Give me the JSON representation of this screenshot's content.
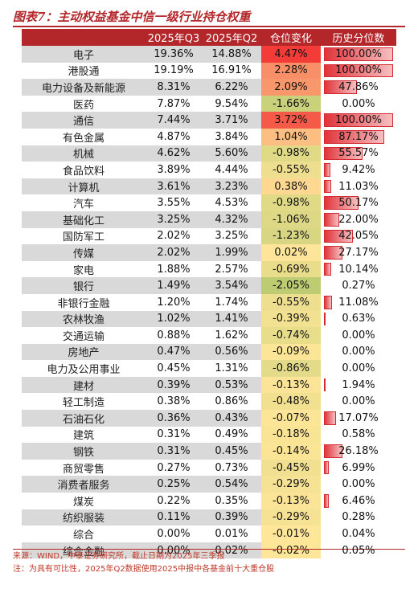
{
  "title": "图表7：主动权益基金中信一级行业持仓权重",
  "headers": [
    "",
    "2025年Q3",
    "2025年Q2",
    "仓位变化",
    "历史分位数"
  ],
  "source": "来源：WIND，中泰证券研究所，截止日期为2025年三季报",
  "note": "注：为具有可比性，2025年Q2数据使用2025中报中各基金前十大重仓股",
  "colors": {
    "accent": "#b3262a",
    "bar": "#e0343a"
  },
  "chart_data": {
    "type": "table",
    "columns": [
      "",
      "2025年Q3",
      "2025年Q2",
      "仓位变化",
      "历史分位数"
    ],
    "rows": [
      {
        "industry": "电子",
        "q3": "19.36%",
        "q2": "14.88%",
        "change": "4.47%",
        "change_value": 4.47,
        "pct": "100.00%",
        "pct_value": 100.0
      },
      {
        "industry": "港股通",
        "q3": "19.19%",
        "q2": "16.91%",
        "change": "2.28%",
        "change_value": 2.28,
        "pct": "100.00%",
        "pct_value": 100.0
      },
      {
        "industry": "电力设备及新能源",
        "q3": "8.31%",
        "q2": "6.22%",
        "change": "2.09%",
        "change_value": 2.09,
        "pct": "47.86%",
        "pct_value": 47.86
      },
      {
        "industry": "医药",
        "q3": "7.87%",
        "q2": "9.54%",
        "change": "-1.66%",
        "change_value": -1.66,
        "pct": "0.00%",
        "pct_value": 0.0
      },
      {
        "industry": "通信",
        "q3": "7.44%",
        "q2": "3.71%",
        "change": "3.72%",
        "change_value": 3.72,
        "pct": "100.00%",
        "pct_value": 100.0
      },
      {
        "industry": "有色金属",
        "q3": "4.87%",
        "q2": "3.84%",
        "change": "1.04%",
        "change_value": 1.04,
        "pct": "87.17%",
        "pct_value": 87.17
      },
      {
        "industry": "机械",
        "q3": "4.62%",
        "q2": "5.60%",
        "change": "-0.98%",
        "change_value": -0.98,
        "pct": "55.57%",
        "pct_value": 55.57
      },
      {
        "industry": "食品饮料",
        "q3": "3.89%",
        "q2": "4.44%",
        "change": "-0.55%",
        "change_value": -0.55,
        "pct": "9.42%",
        "pct_value": 9.42
      },
      {
        "industry": "计算机",
        "q3": "3.61%",
        "q2": "3.23%",
        "change": "0.38%",
        "change_value": 0.38,
        "pct": "11.03%",
        "pct_value": 11.03
      },
      {
        "industry": "汽车",
        "q3": "3.55%",
        "q2": "4.53%",
        "change": "-0.98%",
        "change_value": -0.98,
        "pct": "50.17%",
        "pct_value": 50.17
      },
      {
        "industry": "基础化工",
        "q3": "3.25%",
        "q2": "4.32%",
        "change": "-1.06%",
        "change_value": -1.06,
        "pct": "22.00%",
        "pct_value": 22.0
      },
      {
        "industry": "国防军工",
        "q3": "2.02%",
        "q2": "3.25%",
        "change": "-1.23%",
        "change_value": -1.23,
        "pct": "42.05%",
        "pct_value": 42.05
      },
      {
        "industry": "传媒",
        "q3": "2.02%",
        "q2": "1.99%",
        "change": "0.02%",
        "change_value": 0.02,
        "pct": "27.17%",
        "pct_value": 27.17
      },
      {
        "industry": "家电",
        "q3": "1.88%",
        "q2": "2.57%",
        "change": "-0.69%",
        "change_value": -0.69,
        "pct": "10.14%",
        "pct_value": 10.14
      },
      {
        "industry": "银行",
        "q3": "1.49%",
        "q2": "3.54%",
        "change": "-2.05%",
        "change_value": -2.05,
        "pct": "0.27%",
        "pct_value": 0.27
      },
      {
        "industry": "非银行金融",
        "q3": "1.20%",
        "q2": "1.74%",
        "change": "-0.55%",
        "change_value": -0.55,
        "pct": "11.08%",
        "pct_value": 11.08
      },
      {
        "industry": "农林牧渔",
        "q3": "1.02%",
        "q2": "1.41%",
        "change": "-0.39%",
        "change_value": -0.39,
        "pct": "0.63%",
        "pct_value": 0.63
      },
      {
        "industry": "交通运输",
        "q3": "0.88%",
        "q2": "1.62%",
        "change": "-0.74%",
        "change_value": -0.74,
        "pct": "0.00%",
        "pct_value": 0.0
      },
      {
        "industry": "房地产",
        "q3": "0.47%",
        "q2": "0.56%",
        "change": "-0.09%",
        "change_value": -0.09,
        "pct": "0.00%",
        "pct_value": 0.0
      },
      {
        "industry": "电力及公用事业",
        "q3": "0.45%",
        "q2": "1.31%",
        "change": "-0.86%",
        "change_value": -0.86,
        "pct": "0.00%",
        "pct_value": 0.0
      },
      {
        "industry": "建材",
        "q3": "0.39%",
        "q2": "0.53%",
        "change": "-0.13%",
        "change_value": -0.13,
        "pct": "1.94%",
        "pct_value": 1.94
      },
      {
        "industry": "轻工制造",
        "q3": "0.38%",
        "q2": "0.86%",
        "change": "-0.48%",
        "change_value": -0.48,
        "pct": "0.00%",
        "pct_value": 0.0
      },
      {
        "industry": "石油石化",
        "q3": "0.36%",
        "q2": "0.43%",
        "change": "-0.07%",
        "change_value": -0.07,
        "pct": "17.07%",
        "pct_value": 17.07
      },
      {
        "industry": "建筑",
        "q3": "0.31%",
        "q2": "0.49%",
        "change": "-0.18%",
        "change_value": -0.18,
        "pct": "0.58%",
        "pct_value": 0.58
      },
      {
        "industry": "钢铁",
        "q3": "0.31%",
        "q2": "0.45%",
        "change": "-0.14%",
        "change_value": -0.14,
        "pct": "26.18%",
        "pct_value": 26.18
      },
      {
        "industry": "商贸零售",
        "q3": "0.27%",
        "q2": "0.73%",
        "change": "-0.45%",
        "change_value": -0.45,
        "pct": "6.99%",
        "pct_value": 6.99
      },
      {
        "industry": "消费者服务",
        "q3": "0.25%",
        "q2": "0.54%",
        "change": "-0.29%",
        "change_value": -0.29,
        "pct": "0.00%",
        "pct_value": 0.0
      },
      {
        "industry": "煤炭",
        "q3": "0.22%",
        "q2": "0.35%",
        "change": "-0.13%",
        "change_value": -0.13,
        "pct": "6.46%",
        "pct_value": 6.46
      },
      {
        "industry": "纺织服装",
        "q3": "0.11%",
        "q2": "0.39%",
        "change": "-0.29%",
        "change_value": -0.29,
        "pct": "0.28%",
        "pct_value": 0.28
      },
      {
        "industry": "综合",
        "q3": "0.00%",
        "q2": "0.01%",
        "change": "-0.01%",
        "change_value": -0.01,
        "pct": "0.04%",
        "pct_value": 0.04
      },
      {
        "industry": "综合金融",
        "q3": "0.00%",
        "q2": "0.02%",
        "change": "-0.02%",
        "change_value": -0.02,
        "pct": "0.05%",
        "pct_value": 0.05
      }
    ]
  }
}
